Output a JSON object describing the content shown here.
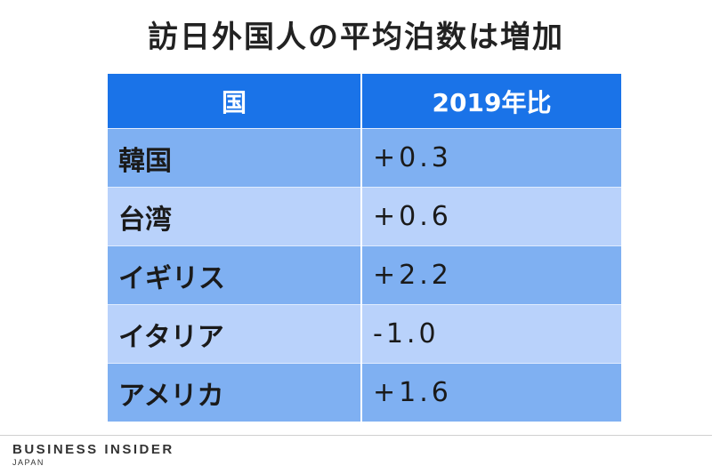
{
  "title": "訪日外国人の平均泊数は増加",
  "table": {
    "headers": [
      "国",
      "2019年比"
    ],
    "rows": [
      {
        "country": "韓国",
        "change": "+0.3"
      },
      {
        "country": "台湾",
        "change": "+0.6"
      },
      {
        "country": "イギリス",
        "change": "+2.2"
      },
      {
        "country": "イタリア",
        "change": "-1.0"
      },
      {
        "country": "アメリカ",
        "change": "+1.6"
      }
    ]
  },
  "colors": {
    "header": "#1a73e8",
    "row_dark": "#7fb0f2",
    "row_light": "#b9d2fb"
  },
  "footer": {
    "logo_main": "BUSINESS INSIDER",
    "logo_sub": "JAPAN"
  }
}
